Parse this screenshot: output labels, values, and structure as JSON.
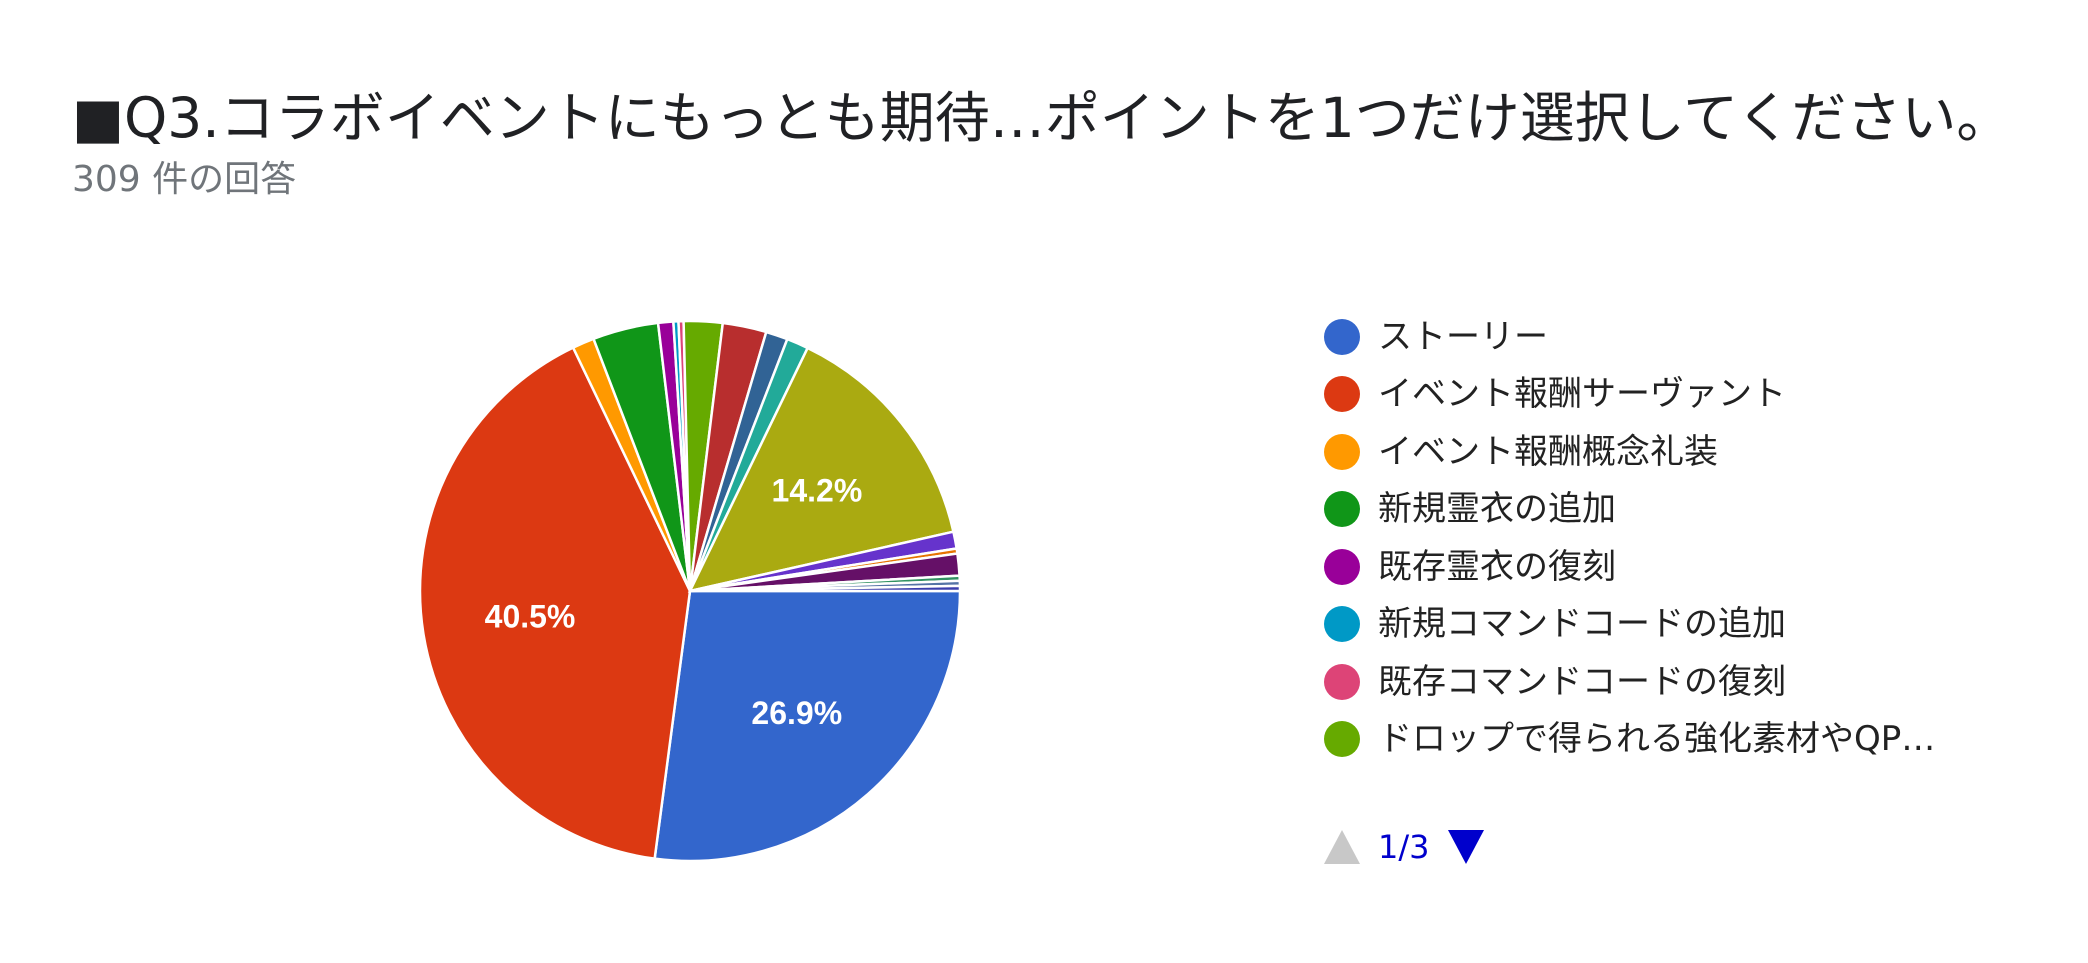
{
  "title": "■Q3.コラボイベントにもっとも期待…ポイントを1つだけ選択してください。",
  "subtitle": "309 件の回答",
  "pager": {
    "text": "1/3",
    "up_icon": "triangle-up-icon",
    "down_icon": "triangle-down-icon",
    "up_color": "#c8c8c8",
    "down_color": "#0000cc"
  },
  "legend": [
    {
      "label": "ストーリー",
      "color": "#3366cc"
    },
    {
      "label": "イベント報酬サーヴァント",
      "color": "#dc3912"
    },
    {
      "label": "イベント報酬概念礼装",
      "color": "#ff9900"
    },
    {
      "label": "新規霊衣の追加",
      "color": "#109618"
    },
    {
      "label": "既存霊衣の復刻",
      "color": "#990099"
    },
    {
      "label": "新規コマンドコードの追加",
      "color": "#0099c6"
    },
    {
      "label": "既存コマンドコードの復刻",
      "color": "#dd4477"
    },
    {
      "label": "ドロップで得られる強化素材やQP…",
      "color": "#66aa00"
    }
  ],
  "chart_data": {
    "type": "pie",
    "start": "3 o'clock, clockwise",
    "slices": [
      {
        "value": 26.9,
        "label": "26.9%",
        "color": "#3366cc"
      },
      {
        "value": 40.5,
        "label": "40.5%",
        "color": "#dc3912"
      },
      {
        "value": 1.3,
        "color": "#ff9900"
      },
      {
        "value": 3.9,
        "color": "#109618"
      },
      {
        "value": 0.9,
        "color": "#990099"
      },
      {
        "value": 0.3,
        "color": "#0099c6"
      },
      {
        "value": 0.3,
        "color": "#dd4477"
      },
      {
        "value": 2.3,
        "color": "#66aa00"
      },
      {
        "value": 2.6,
        "color": "#b82e2e"
      },
      {
        "value": 1.3,
        "color": "#316395"
      },
      {
        "value": 1.3,
        "color": "#22aa99"
      },
      {
        "value": 14.2,
        "label": "14.2%",
        "color": "#aaaa11"
      },
      {
        "value": 1.0,
        "color": "#6633cc"
      },
      {
        "value": 0.3,
        "color": "#e67300"
      },
      {
        "value": 1.3,
        "color": "#651067"
      },
      {
        "value": 0.3,
        "color": "#329262"
      },
      {
        "value": 0.3,
        "color": "#5574a6"
      },
      {
        "value": 0.3,
        "color": "#3b3eac"
      }
    ]
  }
}
